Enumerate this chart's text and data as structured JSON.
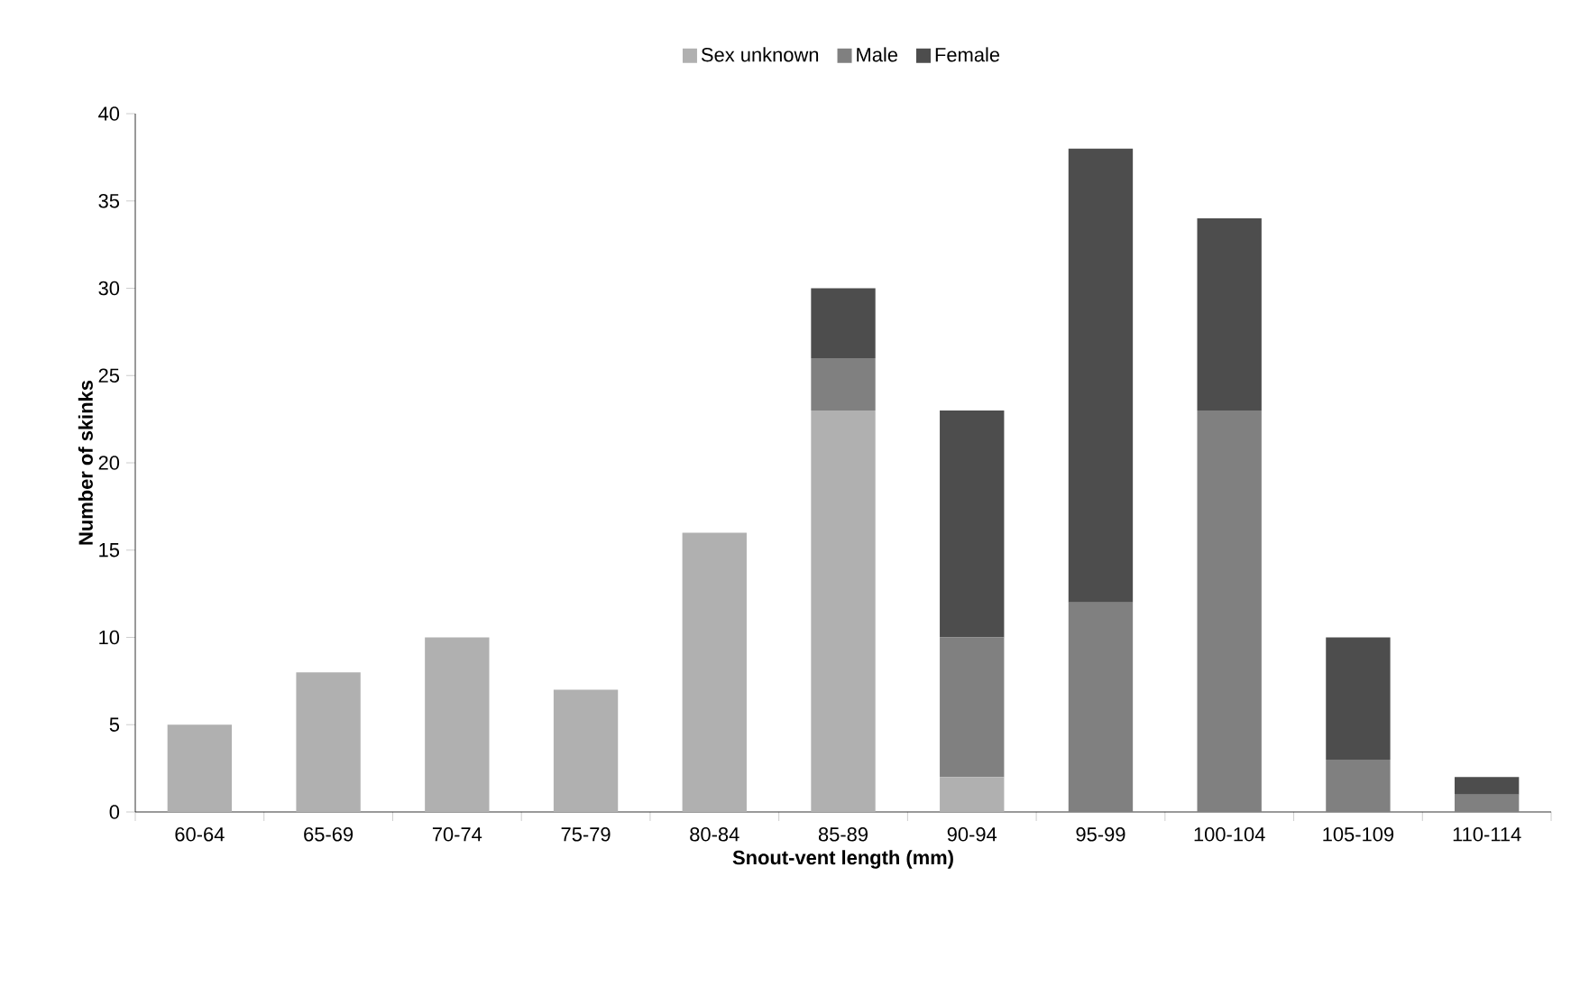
{
  "chart_data": {
    "type": "bar",
    "stacked": true,
    "xlabel": "Snout-vent length (mm)",
    "ylabel": "Number of skinks",
    "categories": [
      "60-64",
      "65-69",
      "70-74",
      "75-79",
      "80-84",
      "85-89",
      "90-94",
      "95-99",
      "100-104",
      "105-109",
      "110-114"
    ],
    "series": [
      {
        "name": "Sex unknown",
        "color": "#b0b0b0",
        "values": [
          5,
          8,
          10,
          7,
          16,
          23,
          2,
          0,
          0,
          0,
          0
        ]
      },
      {
        "name": "Male",
        "color": "#808080",
        "values": [
          0,
          0,
          0,
          0,
          0,
          3,
          8,
          12,
          23,
          3,
          1
        ]
      },
      {
        "name": "Female",
        "color": "#4d4d4d",
        "values": [
          0,
          0,
          0,
          0,
          0,
          4,
          13,
          26,
          11,
          7,
          1
        ]
      }
    ],
    "ylim": [
      0,
      40
    ],
    "yticks": [
      0,
      5,
      10,
      15,
      20,
      25,
      30,
      35,
      40
    ],
    "legend": "top"
  }
}
